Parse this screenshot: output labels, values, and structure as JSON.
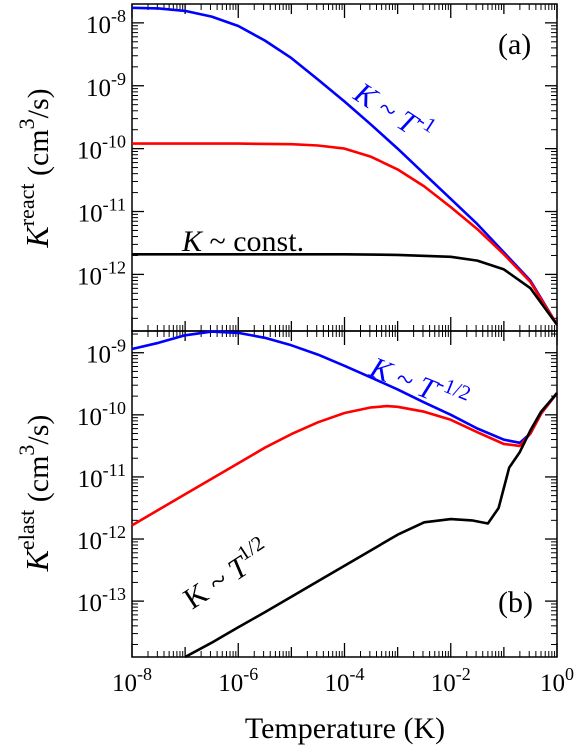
{
  "chart_data": [
    {
      "type": "line",
      "panel_label": "(a)",
      "x_scale": "log",
      "y_scale": "log",
      "xlim": [
        1e-08,
        1
      ],
      "ylim_exp": [
        -12.9,
        -7.7
      ],
      "ylabel": {
        "main": "K",
        "sup": "react",
        "unit": " (cm",
        "unit_sup": "3",
        "unit_end": "/s)"
      },
      "ytick_exponents": [
        -12,
        -11,
        -10,
        -9,
        -8
      ],
      "grid": false,
      "series": [
        {
          "color": "#0000ff",
          "x_log": [
            -8,
            -7.5,
            -7,
            -6.5,
            -6,
            -5.5,
            -5,
            -4.5,
            -4,
            -3.5,
            -3,
            -2.5,
            -2,
            -1.5,
            -1,
            -0.5,
            0
          ],
          "y_log": [
            -7.76,
            -7.77,
            -7.81,
            -7.9,
            -8.05,
            -8.28,
            -8.56,
            -8.9,
            -9.25,
            -9.62,
            -10.0,
            -10.4,
            -10.8,
            -11.2,
            -11.65,
            -12.1,
            -12.8
          ]
        },
        {
          "color": "#ff0000",
          "x_log": [
            -8,
            -7,
            -6,
            -5,
            -4.5,
            -4,
            -3.5,
            -3,
            -2.5,
            -2,
            -1.5,
            -1,
            -0.5,
            0
          ],
          "y_log": [
            -9.92,
            -9.92,
            -9.92,
            -9.93,
            -9.95,
            -10.0,
            -10.13,
            -10.33,
            -10.6,
            -10.93,
            -11.28,
            -11.68,
            -12.12,
            -12.8
          ]
        },
        {
          "color": "#000000",
          "x_log": [
            -8,
            -6,
            -4,
            -3,
            -2,
            -1.5,
            -1,
            -0.5,
            0
          ],
          "y_log": [
            -11.68,
            -11.68,
            -11.68,
            -11.69,
            -11.72,
            -11.78,
            -11.92,
            -12.22,
            -12.8
          ]
        }
      ],
      "annotations": [
        {
          "text_main": "K",
          "text_mid": " ~ T",
          "text_sup": "-1",
          "color": "#0000ff"
        },
        {
          "text_main": "K",
          "text_mid": " ~ const.",
          "text_sup": "",
          "color": "#000000"
        }
      ]
    },
    {
      "type": "line",
      "panel_label": "(b)",
      "x_scale": "log",
      "y_scale": "log",
      "xlim": [
        1e-08,
        1
      ],
      "ylim_exp": [
        -13.9,
        -8.65
      ],
      "xlabel": "Temperature (K)",
      "ylabel": {
        "main": "K",
        "sup": "elast",
        "unit": " (cm",
        "unit_sup": "3",
        "unit_end": "/s)"
      },
      "xtick_exponents": [
        -8,
        -6,
        -4,
        -2,
        0
      ],
      "ytick_exponents": [
        -13,
        -12,
        -11,
        -10,
        -9
      ],
      "grid": false,
      "series": [
        {
          "color": "#0000ff",
          "x_log": [
            -8,
            -7.5,
            -7,
            -6.5,
            -6,
            -5.5,
            -5,
            -4.5,
            -4,
            -3.5,
            -3,
            -2.5,
            -2,
            -1.5,
            -1,
            -0.7,
            -0.5,
            -0.3,
            0
          ],
          "y_log": [
            -8.94,
            -8.84,
            -8.72,
            -8.66,
            -8.68,
            -8.76,
            -8.88,
            -9.03,
            -9.21,
            -9.4,
            -9.59,
            -9.8,
            -10.0,
            -10.22,
            -10.4,
            -10.45,
            -10.3,
            -9.98,
            -9.65
          ]
        },
        {
          "color": "#ff0000",
          "x_log": [
            -8,
            -7.5,
            -7,
            -6.5,
            -6,
            -5.5,
            -5,
            -4.5,
            -4,
            -3.5,
            -3.2,
            -3,
            -2.5,
            -2,
            -1.5,
            -1,
            -0.7,
            -0.5,
            -0.3,
            0
          ],
          "y_log": [
            -11.78,
            -11.53,
            -11.28,
            -11.03,
            -10.78,
            -10.53,
            -10.31,
            -10.12,
            -9.97,
            -9.88,
            -9.86,
            -9.87,
            -9.95,
            -10.08,
            -10.28,
            -10.47,
            -10.5,
            -10.3,
            -9.98,
            -9.65
          ]
        },
        {
          "color": "#000000",
          "x_log": [
            -7,
            -6.5,
            -6,
            -5.5,
            -5,
            -4.5,
            -4,
            -3.5,
            -3,
            -2.5,
            -2,
            -1.6,
            -1.3,
            -1.1,
            -0.9,
            -0.7,
            -0.5,
            -0.3,
            0
          ],
          "y_log": [
            -13.9,
            -13.67,
            -13.42,
            -13.18,
            -12.93,
            -12.68,
            -12.43,
            -12.18,
            -11.93,
            -11.73,
            -11.68,
            -11.7,
            -11.75,
            -11.5,
            -10.85,
            -10.6,
            -10.25,
            -9.95,
            -9.65
          ]
        }
      ],
      "annotations": [
        {
          "text_main": "K",
          "text_mid": " ~ T",
          "text_sup": "-1/2",
          "color": "#0000ff"
        },
        {
          "text_main": "K",
          "text_mid": " ~ T",
          "text_sup": "1/2",
          "color": "#000000"
        }
      ]
    }
  ]
}
